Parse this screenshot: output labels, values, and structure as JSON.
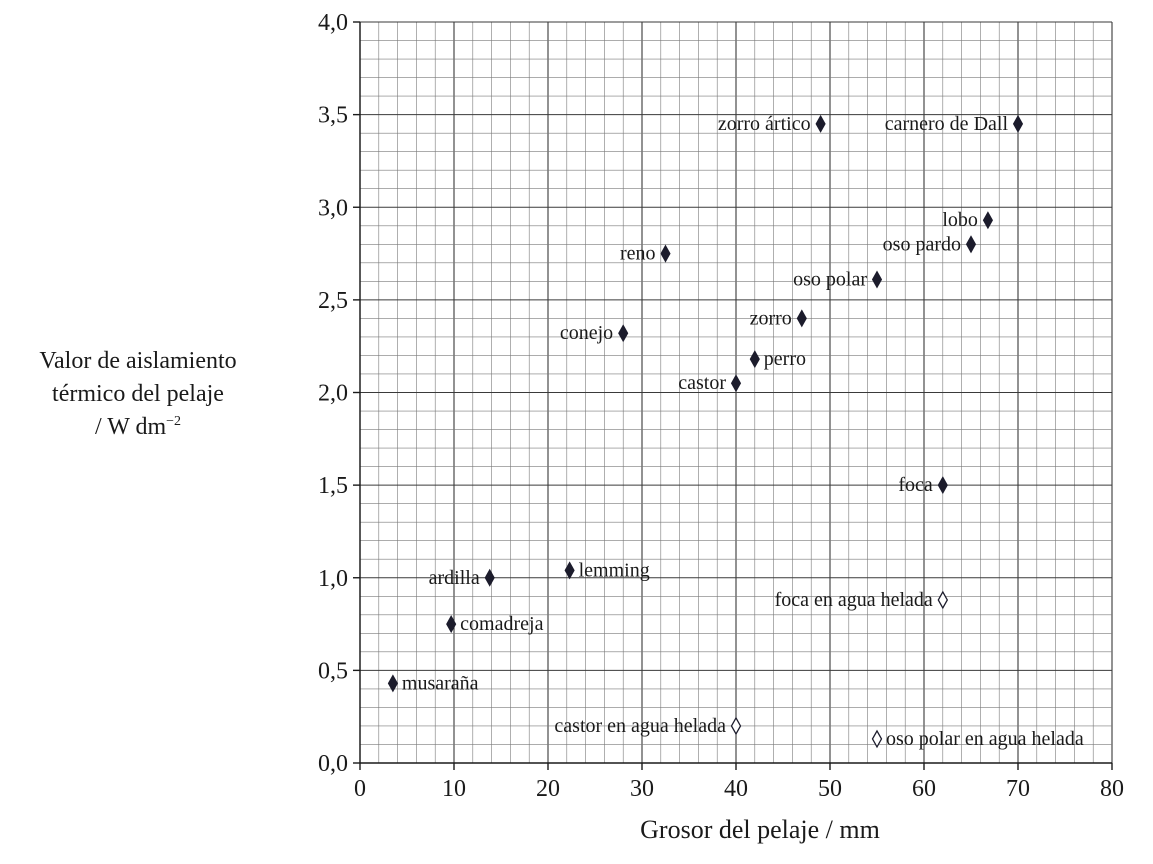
{
  "chart_data": {
    "type": "scatter",
    "ylabel_line1": "Valor de aislamiento",
    "ylabel_line2": "térmico del pelaje",
    "ylabel_unit": "/ W dm",
    "ylabel_unit_exp": "−2",
    "xlabel": "Grosor del pelaje / mm",
    "xlim": [
      0,
      80
    ],
    "ylim": [
      0,
      4
    ],
    "x_ticks": [
      "0",
      "10",
      "20",
      "30",
      "40",
      "50",
      "60",
      "70",
      "80"
    ],
    "y_ticks": [
      "0,0",
      "0,5",
      "1,0",
      "1,5",
      "2,0",
      "2,5",
      "3,0",
      "3,5",
      "4,0"
    ],
    "grid": true,
    "series": [
      {
        "marker": "filled-diamond",
        "points": [
          {
            "label": "musaraña",
            "x": 3.5,
            "y": 0.43
          },
          {
            "label": "comadreja",
            "x": 9.7,
            "y": 0.75
          },
          {
            "label": "ardilla",
            "x": 13.8,
            "y": 1.0
          },
          {
            "label": "lemming",
            "x": 22.3,
            "y": 1.04
          },
          {
            "label": "conejo",
            "x": 28.0,
            "y": 2.32
          },
          {
            "label": "reno",
            "x": 32.5,
            "y": 2.75
          },
          {
            "label": "castor",
            "x": 40.0,
            "y": 2.05
          },
          {
            "label": "perro",
            "x": 42.0,
            "y": 2.18
          },
          {
            "label": "zorro",
            "x": 47.0,
            "y": 2.4
          },
          {
            "label": "zorro ártico",
            "x": 49.0,
            "y": 3.45
          },
          {
            "label": "oso polar",
            "x": 55.0,
            "y": 2.61
          },
          {
            "label": "foca",
            "x": 62.0,
            "y": 1.5
          },
          {
            "label": "oso pardo",
            "x": 65.0,
            "y": 2.8
          },
          {
            "label": "lobo",
            "x": 66.8,
            "y": 2.93
          },
          {
            "label": "carnero de Dall",
            "x": 70.0,
            "y": 3.45
          }
        ]
      },
      {
        "marker": "open-diamond",
        "points": [
          {
            "label": "castor en agua helada",
            "x": 40.0,
            "y": 0.2
          },
          {
            "label": "oso polar en agua helada",
            "x": 55.0,
            "y": 0.13
          },
          {
            "label": "foca en agua helada",
            "x": 62.0,
            "y": 0.88
          }
        ]
      }
    ]
  }
}
